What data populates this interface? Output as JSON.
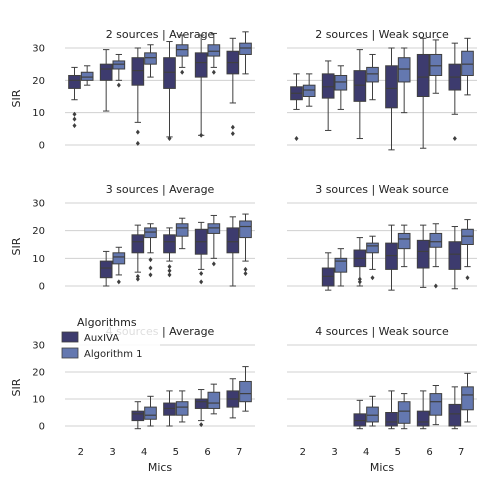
{
  "chart_data": {
    "type": "box",
    "row_labels": [
      "2 sources",
      "3 sources",
      "4 sources"
    ],
    "col_labels": [
      "Average",
      "Weak source"
    ],
    "x_categories": [
      "2",
      "3",
      "4",
      "5",
      "6",
      "7"
    ],
    "xlabel": "Mics",
    "ylabel": "SIR",
    "yticks": [
      0,
      10,
      20,
      30
    ],
    "ylim": [
      -2,
      35
    ],
    "grid": "horizontal",
    "legend": {
      "title": "Algorithms",
      "placement": "upper-left of bottom-left panel",
      "entries": [
        {
          "name": "AuxIVA",
          "color": "#3d3b6e"
        },
        {
          "name": "Algorithm 1",
          "color": "#6478b0"
        }
      ]
    },
    "panels": [
      {
        "title": "2 sources | Average",
        "row": 0,
        "col": 0,
        "boxes": [
          {
            "mic": "2",
            "series": "AuxIVA",
            "whislo": 14,
            "q1": 17.5,
            "med": 20,
            "q3": 21.5,
            "whishi": 24,
            "fliers": [
              9.5,
              8,
              6
            ]
          },
          {
            "mic": "2",
            "series": "Algorithm 1",
            "whislo": 18.5,
            "q1": 20,
            "med": 21,
            "q3": 22.5,
            "whishi": 24.5,
            "fliers": []
          },
          {
            "mic": "3",
            "series": "AuxIVA",
            "whislo": 10.5,
            "q1": 20,
            "med": 23.5,
            "q3": 25,
            "whishi": 29.5,
            "fliers": []
          },
          {
            "mic": "3",
            "series": "Algorithm 1",
            "whislo": 20,
            "q1": 23.5,
            "med": 25,
            "q3": 26,
            "whishi": 28,
            "fliers": [
              18.5
            ]
          },
          {
            "mic": "4",
            "series": "AuxIVA",
            "whislo": 7,
            "q1": 18.5,
            "med": 23,
            "q3": 27,
            "whishi": 30,
            "fliers": [
              4,
              0.5
            ]
          },
          {
            "mic": "4",
            "series": "Algorithm 1",
            "whislo": 21,
            "q1": 25,
            "med": 27,
            "q3": 28.5,
            "whishi": 31,
            "fliers": []
          },
          {
            "mic": "5",
            "series": "AuxIVA",
            "whislo": 2.5,
            "q1": 17.5,
            "med": 22.5,
            "q3": 27,
            "whishi": 32,
            "fliers": [
              2
            ]
          },
          {
            "mic": "5",
            "series": "Algorithm 1",
            "whislo": 24,
            "q1": 27.5,
            "med": 29.5,
            "q3": 31,
            "whishi": 34,
            "fliers": [
              22.5
            ]
          },
          {
            "mic": "6",
            "series": "AuxIVA",
            "whislo": 3,
            "q1": 21,
            "med": 25.5,
            "q3": 28.5,
            "whishi": 34,
            "fliers": [
              3
            ]
          },
          {
            "mic": "6",
            "series": "Algorithm 1",
            "whislo": 24,
            "q1": 27.5,
            "med": 29,
            "q3": 31,
            "whishi": 34.5,
            "fliers": [
              22.5
            ]
          },
          {
            "mic": "7",
            "series": "AuxIVA",
            "whislo": 13,
            "q1": 22,
            "med": 25.5,
            "q3": 29,
            "whishi": 33,
            "fliers": [
              5.5,
              3.5
            ]
          },
          {
            "mic": "7",
            "series": "Algorithm 1",
            "whislo": 22,
            "q1": 28,
            "med": 30,
            "q3": 31.5,
            "whishi": 35,
            "fliers": []
          }
        ]
      },
      {
        "title": "2 sources | Weak source",
        "row": 0,
        "col": 1,
        "boxes": [
          {
            "mic": "2",
            "series": "AuxIVA",
            "whislo": 11,
            "q1": 14,
            "med": 16,
            "q3": 18,
            "whishi": 22,
            "fliers": [
              2
            ]
          },
          {
            "mic": "2",
            "series": "Algorithm 1",
            "whislo": 12,
            "q1": 15,
            "med": 17,
            "q3": 18.5,
            "whishi": 22,
            "fliers": []
          },
          {
            "mic": "3",
            "series": "AuxIVA",
            "whislo": 4.5,
            "q1": 14.5,
            "med": 18,
            "q3": 22,
            "whishi": 26,
            "fliers": []
          },
          {
            "mic": "3",
            "series": "Algorithm 1",
            "whislo": 11,
            "q1": 17,
            "med": 19.5,
            "q3": 21.5,
            "whishi": 24.5,
            "fliers": []
          },
          {
            "mic": "4",
            "series": "AuxIVA",
            "whislo": 2,
            "q1": 13.5,
            "med": 18.5,
            "q3": 23,
            "whishi": 29.5,
            "fliers": []
          },
          {
            "mic": "4",
            "series": "Algorithm 1",
            "whislo": 14,
            "q1": 19.5,
            "med": 22,
            "q3": 24,
            "whishi": 28,
            "fliers": []
          },
          {
            "mic": "5",
            "series": "AuxIVA",
            "whislo": -1.5,
            "q1": 11.5,
            "med": 17.5,
            "q3": 24.5,
            "whishi": 30,
            "fliers": []
          },
          {
            "mic": "5",
            "series": "Algorithm 1",
            "whislo": 10,
            "q1": 19.5,
            "med": 23.5,
            "q3": 27,
            "whishi": 30,
            "fliers": []
          },
          {
            "mic": "6",
            "series": "AuxIVA",
            "whislo": -1,
            "q1": 15,
            "med": 21,
            "q3": 28,
            "whishi": 33,
            "fliers": []
          },
          {
            "mic": "6",
            "series": "Algorithm 1",
            "whislo": 16,
            "q1": 21.5,
            "med": 24.5,
            "q3": 28,
            "whishi": 32.5,
            "fliers": []
          },
          {
            "mic": "7",
            "series": "AuxIVA",
            "whislo": 9.5,
            "q1": 17,
            "med": 21,
            "q3": 25,
            "whishi": 31.5,
            "fliers": [
              2
            ]
          },
          {
            "mic": "7",
            "series": "Algorithm 1",
            "whislo": 15.5,
            "q1": 21.5,
            "med": 25,
            "q3": 29,
            "whishi": 33,
            "fliers": []
          }
        ]
      },
      {
        "title": "3 sources | Average",
        "row": 1,
        "col": 0,
        "boxes": [
          {
            "mic": "3",
            "series": "AuxIVA",
            "whislo": 0,
            "q1": 3,
            "med": 6.5,
            "q3": 9,
            "whishi": 12.5,
            "fliers": []
          },
          {
            "mic": "3",
            "series": "Algorithm 1",
            "whislo": 4,
            "q1": 8,
            "med": 10.5,
            "q3": 12,
            "whishi": 14,
            "fliers": [
              1.5
            ]
          },
          {
            "mic": "4",
            "series": "AuxIVA",
            "whislo": 5,
            "q1": 12,
            "med": 16,
            "q3": 18.5,
            "whishi": 22,
            "fliers": [
              3.5,
              2.5
            ]
          },
          {
            "mic": "4",
            "series": "Algorithm 1",
            "whislo": 12,
            "q1": 17.5,
            "med": 19.5,
            "q3": 21,
            "whishi": 22.5,
            "fliers": [
              9.5,
              6.5,
              4
            ]
          },
          {
            "mic": "5",
            "series": "AuxIVA",
            "whislo": 9,
            "q1": 12,
            "med": 16,
            "q3": 18.5,
            "whishi": 21,
            "fliers": [
              7,
              5.5,
              4
            ]
          },
          {
            "mic": "5",
            "series": "Algorithm 1",
            "whislo": 13.5,
            "q1": 18,
            "med": 21,
            "q3": 22.5,
            "whishi": 24.5,
            "fliers": []
          },
          {
            "mic": "6",
            "series": "AuxIVA",
            "whislo": 6,
            "q1": 11.5,
            "med": 16,
            "q3": 20.5,
            "whishi": 23,
            "fliers": [
              4.5,
              1.5
            ]
          },
          {
            "mic": "6",
            "series": "Algorithm 1",
            "whislo": 10,
            "q1": 19,
            "med": 21,
            "q3": 22.5,
            "whishi": 25.5,
            "fliers": [
              8
            ]
          },
          {
            "mic": "7",
            "series": "AuxIVA",
            "whislo": 0,
            "q1": 12,
            "med": 16,
            "q3": 21,
            "whishi": 25,
            "fliers": []
          },
          {
            "mic": "7",
            "series": "Algorithm 1",
            "whislo": 9,
            "q1": 17.5,
            "med": 21.5,
            "q3": 23.5,
            "whishi": 26,
            "fliers": [
              6,
              4.5
            ]
          }
        ]
      },
      {
        "title": "3 sources | Weak source",
        "row": 1,
        "col": 1,
        "boxes": [
          {
            "mic": "3",
            "series": "AuxIVA",
            "whislo": -1.5,
            "q1": 0,
            "med": 3.5,
            "q3": 6.5,
            "whishi": 12,
            "fliers": []
          },
          {
            "mic": "3",
            "series": "Algorithm 1",
            "whislo": 0,
            "q1": 5,
            "med": 9,
            "q3": 10,
            "whishi": 13.5,
            "fliers": []
          },
          {
            "mic": "4",
            "series": "AuxIVA",
            "whislo": 0,
            "q1": 7,
            "med": 10,
            "q3": 13,
            "whishi": 17.5,
            "fliers": [
              2.5,
              1.5
            ]
          },
          {
            "mic": "4",
            "series": "Algorithm 1",
            "whislo": 6,
            "q1": 12,
            "med": 14.5,
            "q3": 15.5,
            "whishi": 18,
            "fliers": [
              3
            ]
          },
          {
            "mic": "5",
            "series": "AuxIVA",
            "whislo": -1.5,
            "q1": 6,
            "med": 11,
            "q3": 15.5,
            "whishi": 22,
            "fliers": []
          },
          {
            "mic": "5",
            "series": "Algorithm 1",
            "whislo": 7,
            "q1": 13.5,
            "med": 17,
            "q3": 19,
            "whishi": 22,
            "fliers": []
          },
          {
            "mic": "6",
            "series": "AuxIVA",
            "whislo": -0.5,
            "q1": 6.5,
            "med": 12.5,
            "q3": 16.5,
            "whishi": 22,
            "fliers": []
          },
          {
            "mic": "6",
            "series": "Algorithm 1",
            "whislo": 7,
            "q1": 14,
            "med": 16,
            "q3": 19,
            "whishi": 22.5,
            "fliers": [
              0
            ]
          },
          {
            "mic": "7",
            "series": "AuxIVA",
            "whislo": -1,
            "q1": 6,
            "med": 11.5,
            "q3": 16,
            "whishi": 21.5,
            "fliers": []
          },
          {
            "mic": "7",
            "series": "Algorithm 1",
            "whislo": 7,
            "q1": 15,
            "med": 18,
            "q3": 20.5,
            "whishi": 24,
            "fliers": [
              3
            ]
          }
        ]
      },
      {
        "title": "4 sources | Average",
        "row": 2,
        "col": 0,
        "boxes": [
          {
            "mic": "4",
            "series": "AuxIVA",
            "whislo": -1,
            "q1": 2,
            "med": 4.5,
            "q3": 5.5,
            "whishi": 9,
            "fliers": []
          },
          {
            "mic": "4",
            "series": "Algorithm 1",
            "whislo": 0,
            "q1": 2.5,
            "med": 4,
            "q3": 7,
            "whishi": 11,
            "fliers": []
          },
          {
            "mic": "5",
            "series": "AuxIVA",
            "whislo": 0,
            "q1": 4,
            "med": 6.5,
            "q3": 8.5,
            "whishi": 13,
            "fliers": []
          },
          {
            "mic": "5",
            "series": "Algorithm 1",
            "whislo": 1.5,
            "q1": 4,
            "med": 7,
            "q3": 9,
            "whishi": 13,
            "fliers": []
          },
          {
            "mic": "6",
            "series": "AuxIVA",
            "whislo": 2,
            "q1": 6.5,
            "med": 9,
            "q3": 10,
            "whishi": 13.5,
            "fliers": [
              0.5
            ]
          },
          {
            "mic": "6",
            "series": "Algorithm 1",
            "whislo": 4.5,
            "q1": 6.5,
            "med": 8.5,
            "q3": 12.5,
            "whishi": 15.5,
            "fliers": []
          },
          {
            "mic": "7",
            "series": "AuxIVA",
            "whislo": 3,
            "q1": 7,
            "med": 10,
            "q3": 13,
            "whishi": 17.5,
            "fliers": []
          },
          {
            "mic": "7",
            "series": "Algorithm 1",
            "whislo": 5.5,
            "q1": 9,
            "med": 12,
            "q3": 16.5,
            "whishi": 22,
            "fliers": []
          }
        ]
      },
      {
        "title": "4 sources | Weak source",
        "row": 2,
        "col": 1,
        "boxes": [
          {
            "mic": "4",
            "series": "AuxIVA",
            "whislo": -1,
            "q1": 0,
            "med": 2,
            "q3": 4.5,
            "whishi": 9.5,
            "fliers": []
          },
          {
            "mic": "4",
            "series": "Algorithm 1",
            "whislo": 0,
            "q1": 1.5,
            "med": 4,
            "q3": 7,
            "whishi": 11,
            "fliers": []
          },
          {
            "mic": "5",
            "series": "AuxIVA",
            "whislo": -1,
            "q1": 0,
            "med": 1.5,
            "q3": 5,
            "whishi": 13,
            "fliers": []
          },
          {
            "mic": "5",
            "series": "Algorithm 1",
            "whislo": -1,
            "q1": 1,
            "med": 5.5,
            "q3": 9,
            "whishi": 12,
            "fliers": []
          },
          {
            "mic": "6",
            "series": "AuxIVA",
            "whislo": -1,
            "q1": 0,
            "med": 1.5,
            "q3": 5.5,
            "whishi": 13,
            "fliers": []
          },
          {
            "mic": "6",
            "series": "Algorithm 1",
            "whislo": 0.5,
            "q1": 4,
            "med": 9,
            "q3": 12,
            "whishi": 15,
            "fliers": []
          },
          {
            "mic": "7",
            "series": "AuxIVA",
            "whislo": -1,
            "q1": 0,
            "med": 4.5,
            "q3": 8,
            "whishi": 14.5,
            "fliers": []
          },
          {
            "mic": "7",
            "series": "Algorithm 1",
            "whislo": 1.5,
            "q1": 6,
            "med": 11.5,
            "q3": 14.5,
            "whishi": 19.5,
            "fliers": []
          }
        ]
      }
    ]
  }
}
